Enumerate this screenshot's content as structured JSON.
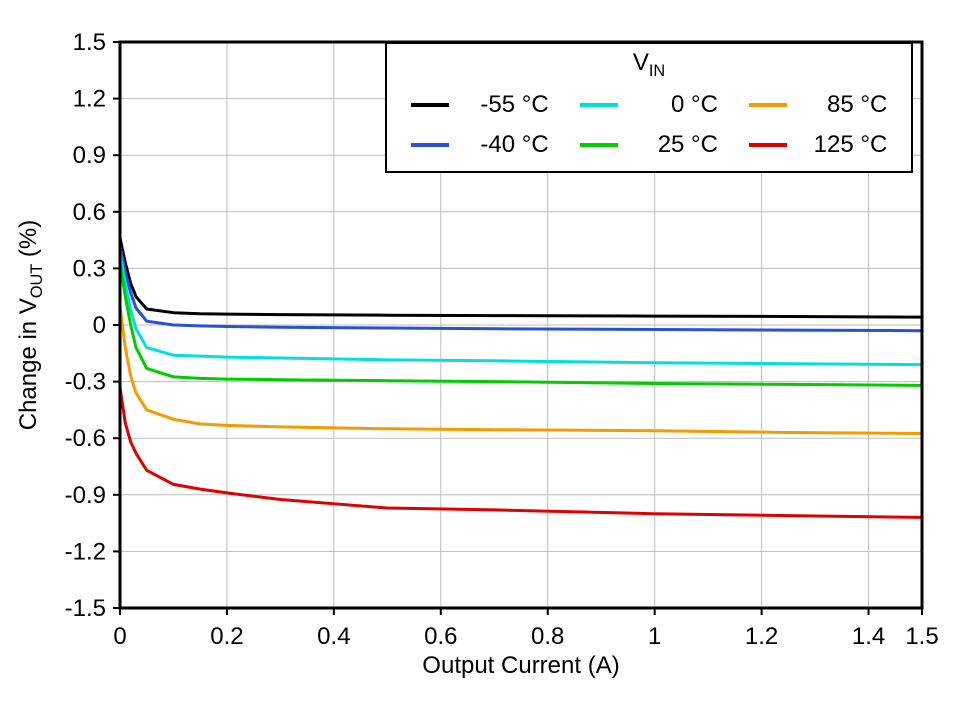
{
  "colors": {
    "background": "#ffffff",
    "grid": "#bdbdbd",
    "frame": "#000000",
    "text": "#000000"
  },
  "chart_data": {
    "type": "line",
    "title": "",
    "xlabel_text": "Output Current (A)",
    "ylabel": {
      "pre": "Change in V",
      "sub": "OUT",
      "post": " (%)"
    },
    "xlim": [
      0,
      1.5
    ],
    "ylim": [
      -1.5,
      1.5
    ],
    "grid": true,
    "x_ticks": {
      "values": [
        0,
        0.2,
        0.4,
        0.6,
        0.8,
        1.0,
        1.2,
        1.4,
        1.5
      ],
      "labels": [
        "0",
        "0.2",
        "0.4",
        "0.6",
        "0.8",
        "1",
        "1.2",
        "1.4",
        "1.5"
      ]
    },
    "y_ticks": {
      "values": [
        1.5,
        1.2,
        0.9,
        0.6,
        0.3,
        0,
        -0.3,
        -0.6,
        -0.9,
        -1.2,
        -1.5
      ],
      "labels": [
        "1.5",
        "1.2",
        "0.9",
        "0.6",
        "0.3",
        "0",
        "-0.3",
        "-0.6",
        "-0.9",
        "-1.2",
        "-1.5"
      ]
    },
    "legend": {
      "title": {
        "pre": "V",
        "sub": "IN"
      },
      "position": "top-right",
      "order": [
        0,
        2,
        4,
        1,
        3,
        5
      ]
    },
    "x": [
      0,
      0.01,
      0.02,
      0.03,
      0.05,
      0.1,
      0.15,
      0.2,
      0.3,
      0.5,
      0.7,
      1.0,
      1.25,
      1.5
    ],
    "series": [
      {
        "name": "-55 °C",
        "color": "#000000",
        "values": [
          0.46,
          0.33,
          0.22,
          0.15,
          0.085,
          0.065,
          0.06,
          0.058,
          0.055,
          0.052,
          0.05,
          0.047,
          0.045,
          0.042
        ]
      },
      {
        "name": "-40 °C",
        "color": "#2850d8",
        "values": [
          0.42,
          0.28,
          0.17,
          0.09,
          0.02,
          0.0,
          -0.005,
          -0.008,
          -0.012,
          -0.016,
          -0.02,
          -0.024,
          -0.027,
          -0.03
        ]
      },
      {
        "name": "0 °C",
        "color": "#00e0e0",
        "values": [
          0.38,
          0.22,
          0.08,
          -0.02,
          -0.12,
          -0.16,
          -0.165,
          -0.17,
          -0.175,
          -0.185,
          -0.19,
          -0.2,
          -0.205,
          -0.21
        ]
      },
      {
        "name": "25 °C",
        "color": "#00cc00",
        "values": [
          0.33,
          0.15,
          0.0,
          -0.12,
          -0.23,
          -0.275,
          -0.283,
          -0.287,
          -0.29,
          -0.295,
          -0.3,
          -0.31,
          -0.315,
          -0.32
        ]
      },
      {
        "name": "85 °C",
        "color": "#f59b00",
        "values": [
          0.1,
          -0.12,
          -0.27,
          -0.36,
          -0.45,
          -0.5,
          -0.525,
          -0.532,
          -0.54,
          -0.55,
          -0.555,
          -0.56,
          -0.57,
          -0.575
        ]
      },
      {
        "name": "125 °C",
        "color": "#e00000",
        "values": [
          -0.33,
          -0.52,
          -0.62,
          -0.68,
          -0.77,
          -0.845,
          -0.87,
          -0.89,
          -0.925,
          -0.97,
          -0.98,
          -1.0,
          -1.01,
          -1.02
        ]
      }
    ]
  }
}
